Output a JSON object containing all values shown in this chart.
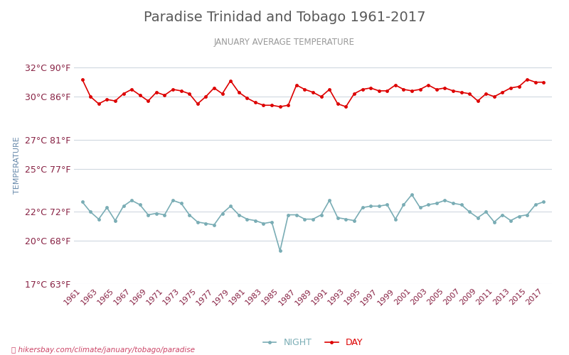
{
  "title": "Paradise Trinidad and Tobago 1961-2017",
  "subtitle": "JANUARY AVERAGE TEMPERATURE",
  "xlabel_url": "hikersbay.com/climate/january/tobago/paradise",
  "ylabel": "TEMPERATURE",
  "yticks_c": [
    17,
    20,
    22,
    25,
    27,
    30,
    32
  ],
  "yticks_f": [
    63,
    68,
    72,
    77,
    81,
    86,
    90
  ],
  "years": [
    1961,
    1962,
    1963,
    1964,
    1965,
    1966,
    1967,
    1968,
    1969,
    1970,
    1971,
    1972,
    1973,
    1974,
    1975,
    1976,
    1977,
    1978,
    1979,
    1980,
    1981,
    1982,
    1983,
    1984,
    1985,
    1986,
    1987,
    1988,
    1989,
    1990,
    1991,
    1992,
    1993,
    1994,
    1995,
    1996,
    1997,
    1998,
    1999,
    2000,
    2001,
    2002,
    2003,
    2004,
    2005,
    2006,
    2007,
    2008,
    2009,
    2010,
    2011,
    2012,
    2013,
    2014,
    2015,
    2016,
    2017
  ],
  "day_temps": [
    31.2,
    30.0,
    29.5,
    29.8,
    29.7,
    30.2,
    30.5,
    30.1,
    29.7,
    30.3,
    30.1,
    30.5,
    30.4,
    30.2,
    29.5,
    30.0,
    30.6,
    30.2,
    31.1,
    30.3,
    29.9,
    29.6,
    29.4,
    29.4,
    29.3,
    29.4,
    30.8,
    30.5,
    30.3,
    30.0,
    30.5,
    29.5,
    29.3,
    30.2,
    30.5,
    30.6,
    30.4,
    30.4,
    30.8,
    30.5,
    30.4,
    30.5,
    30.8,
    30.5,
    30.6,
    30.4,
    30.3,
    30.2,
    29.7,
    30.2,
    30.0,
    30.3,
    30.6,
    30.7,
    31.2,
    31.0,
    31.0
  ],
  "night_temps": [
    22.7,
    22.0,
    21.5,
    22.3,
    21.4,
    22.4,
    22.8,
    22.5,
    21.8,
    21.9,
    21.8,
    22.8,
    22.6,
    21.8,
    21.3,
    21.2,
    21.1,
    21.9,
    22.4,
    21.8,
    21.5,
    21.4,
    21.2,
    21.3,
    19.3,
    21.8,
    21.8,
    21.5,
    21.5,
    21.8,
    22.8,
    21.6,
    21.5,
    21.4,
    22.3,
    22.4,
    22.4,
    22.5,
    21.5,
    22.5,
    23.2,
    22.3,
    22.5,
    22.6,
    22.8,
    22.6,
    22.5,
    22.0,
    21.6,
    22.0,
    21.3,
    21.8,
    21.4,
    21.7,
    21.8,
    22.5,
    22.7
  ],
  "day_color": "#dd0000",
  "night_color": "#7aadb5",
  "grid_color": "#d0d8e0",
  "title_color": "#595959",
  "subtitle_color": "#999999",
  "ylabel_color": "#6688aa",
  "tick_label_color": "#882244",
  "background_color": "#ffffff",
  "legend_night_label": "NIGHT",
  "legend_day_label": "DAY",
  "url_color": "#cc4466",
  "url_text": "⌕ hikersbay.com/climate/january/tobago/paradise"
}
